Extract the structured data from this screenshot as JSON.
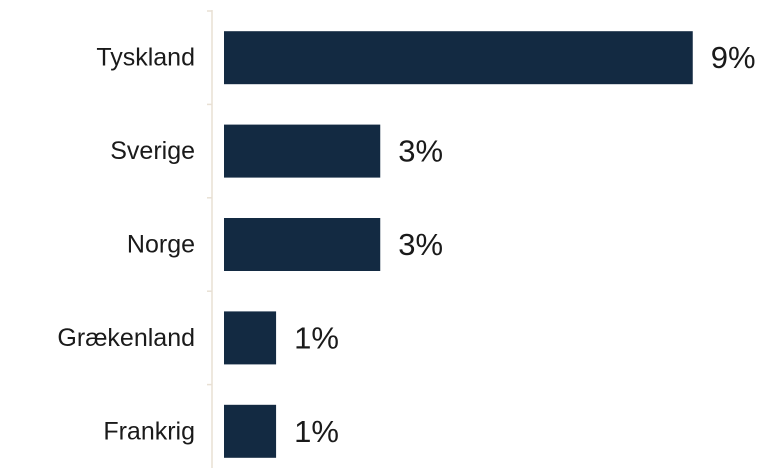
{
  "chart_data": {
    "type": "bar",
    "orientation": "horizontal",
    "categories": [
      "Tyskland",
      "Sverige",
      "Norge",
      "Grækenland",
      "Frankrig"
    ],
    "values": [
      9,
      3,
      3,
      1,
      1
    ],
    "value_labels": [
      "9%",
      "3%",
      "3%",
      "1%",
      "1%"
    ],
    "value_scale_max": 9.6,
    "xlabel": "",
    "ylabel": "",
    "grid": false,
    "legend": "none",
    "bar_color": "#132a42",
    "axis_color": "#e8e0d4"
  }
}
